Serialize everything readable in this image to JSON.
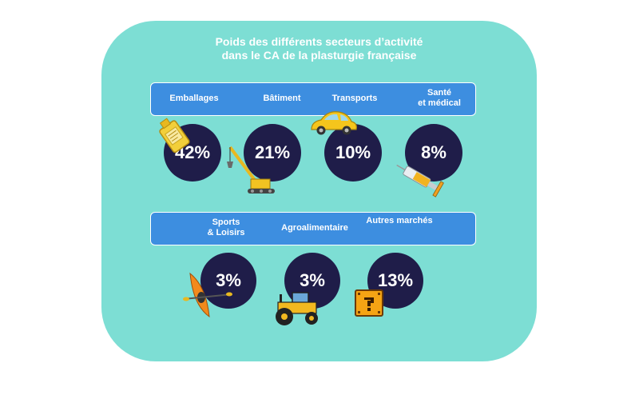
{
  "title_line1": "Poids des différents secteurs d’activité",
  "title_line2": "dans le CA de la plasturgie française",
  "colors": {
    "card": "#7dded4",
    "band": "#3d8ee0",
    "circle": "#1f1d49",
    "text": "#ffffff"
  },
  "row1": [
    {
      "label": "Emballages",
      "value": "42%",
      "icon": "oil-bottle-icon"
    },
    {
      "label": "Bâtiment",
      "value": "21%",
      "icon": "crane-icon"
    },
    {
      "label": "Transports",
      "value": "10%",
      "icon": "car-icon"
    },
    {
      "label_line1": "Santé",
      "label_line2": "et médical",
      "value": "8%",
      "icon": "syringe-icon"
    }
  ],
  "row2": [
    {
      "label_line1": "Sports",
      "label_line2": "& Loisirs",
      "value": "3%",
      "icon": "kayak-icon"
    },
    {
      "label": "Agroalimentaire",
      "value": "3%",
      "icon": "tractor-icon"
    },
    {
      "label": "Autres marchés",
      "value": "13%",
      "icon": "question-block-icon"
    }
  ]
}
